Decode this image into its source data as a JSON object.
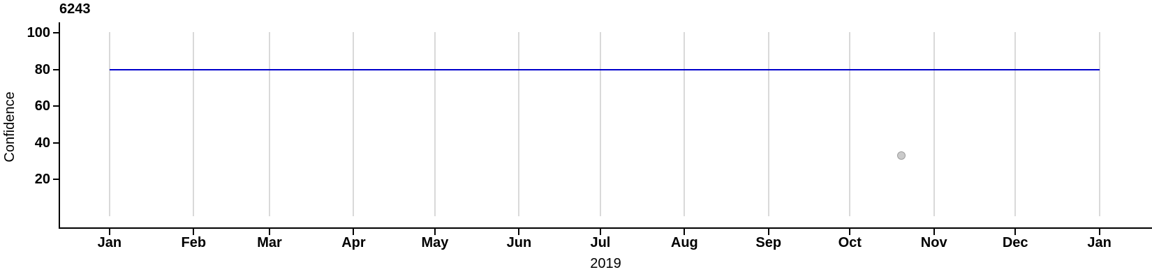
{
  "chart_data": {
    "type": "line",
    "title": "6243",
    "xlabel": "2019",
    "ylabel": "Confidence",
    "x_axis": {
      "unit": "days-from-2019-01-01",
      "range": [
        -18.5,
        384.4
      ],
      "grid": true,
      "ticks": [
        {
          "label": "Jan",
          "day": 0
        },
        {
          "label": "Feb",
          "day": 31
        },
        {
          "label": "Mar",
          "day": 59
        },
        {
          "label": "Apr",
          "day": 90
        },
        {
          "label": "May",
          "day": 120
        },
        {
          "label": "Jun",
          "day": 151
        },
        {
          "label": "Jul",
          "day": 181
        },
        {
          "label": "Aug",
          "day": 212
        },
        {
          "label": "Sep",
          "day": 243
        },
        {
          "label": "Oct",
          "day": 273
        },
        {
          "label": "Nov",
          "day": 304
        },
        {
          "label": "Dec",
          "day": 334
        },
        {
          "label": "Jan",
          "day": 365
        }
      ]
    },
    "y_axis": {
      "range": [
        -6.2,
        105.8
      ],
      "grid": false,
      "ticks": [
        20,
        40,
        60,
        80,
        100
      ]
    },
    "grid_value_span": [
      0,
      100.5
    ],
    "series": [
      {
        "name": "confidence-threshold-line",
        "type": "hline",
        "y": 80,
        "x_start_day": 0,
        "x_end_day": 365,
        "color": "#0000CC"
      }
    ],
    "points": [
      {
        "name": "outlier-point",
        "day": 292,
        "date_estimate": "Oct 20",
        "value": 33,
        "fill": "#CACACA",
        "stroke": "#9E9E9E"
      }
    ],
    "colors": {
      "axis": "#000000",
      "gridline": "#D9D9D9",
      "text": "#000000",
      "background": "#FFFFFF"
    }
  }
}
